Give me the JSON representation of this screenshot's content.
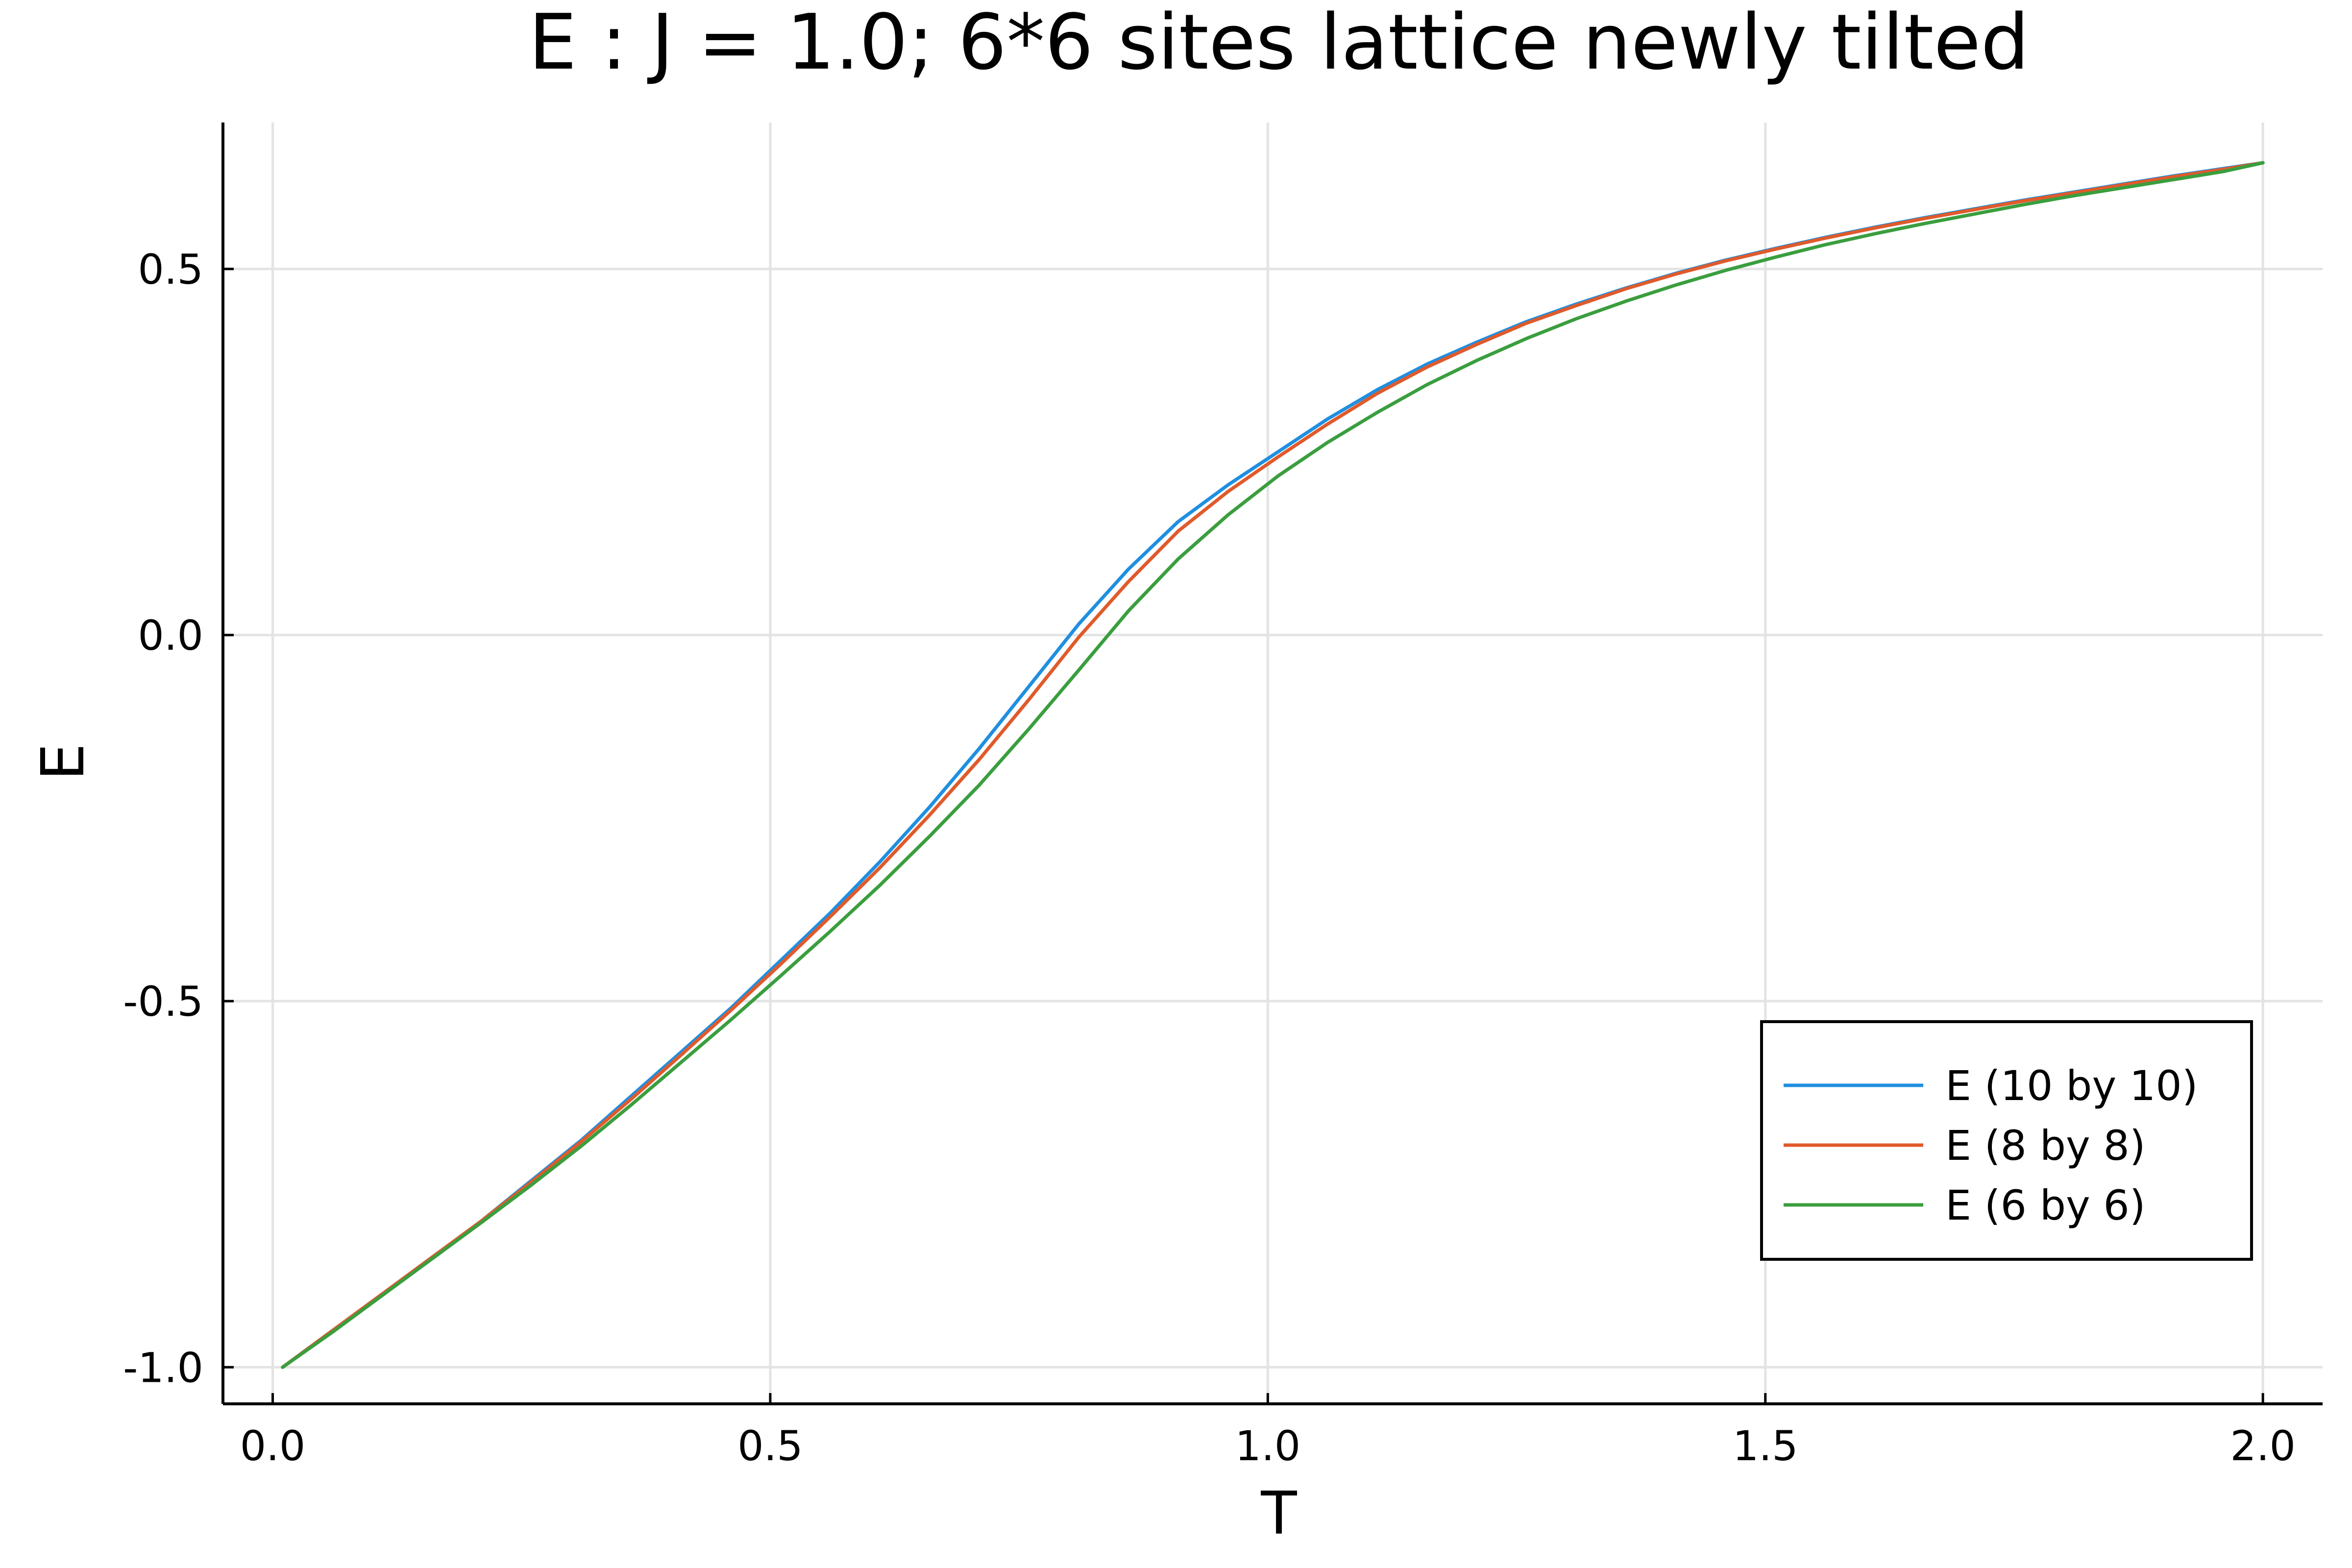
{
  "chart_data": {
    "type": "line",
    "title": "E : J = 1.0; 6*6 sites lattice newly tilted",
    "xlabel": "T",
    "ylabel": "E",
    "xlim": [
      -0.05,
      2.06
    ],
    "ylim": [
      -1.05,
      0.7
    ],
    "xticks": [
      0.0,
      0.5,
      1.0,
      1.5,
      2.0
    ],
    "xtick_labels": [
      "0.0",
      "0.5",
      "1.0",
      "1.5",
      "2.0"
    ],
    "yticks": [
      -1.0,
      -0.5,
      0.0,
      0.5
    ],
    "ytick_labels": [
      "-1.0",
      "-0.5",
      "0.0",
      "0.5"
    ],
    "grid": true,
    "legend_position": "bottom-right",
    "x": [
      0.01,
      0.06,
      0.11,
      0.16,
      0.21,
      0.26,
      0.31,
      0.36,
      0.41,
      0.46,
      0.51,
      0.56,
      0.61,
      0.66,
      0.71,
      0.76,
      0.81,
      0.86,
      0.91,
      0.96,
      1.01,
      1.06,
      1.11,
      1.16,
      1.21,
      1.26,
      1.31,
      1.36,
      1.41,
      1.46,
      1.51,
      1.56,
      1.61,
      1.66,
      1.71,
      1.76,
      1.81,
      1.86,
      1.91,
      1.96,
      2.0
    ],
    "series": [
      {
        "name": "E (10 by 10)",
        "color": "#1f8fe0",
        "values": [
          -1.0,
          -0.95,
          -0.9,
          -0.85,
          -0.8,
          -0.745,
          -0.69,
          -0.63,
          -0.57,
          -0.51,
          -0.445,
          -0.38,
          -0.31,
          -0.235,
          -0.155,
          -0.07,
          0.015,
          0.09,
          0.155,
          0.205,
          0.25,
          0.295,
          0.335,
          0.37,
          0.4,
          0.428,
          0.452,
          0.474,
          0.494,
          0.512,
          0.528,
          0.543,
          0.557,
          0.57,
          0.582,
          0.594,
          0.605,
          0.616,
          0.627,
          0.637,
          0.645
        ]
      },
      {
        "name": "E (8 by 8)",
        "color": "#e05a2b",
        "values": [
          -1.0,
          -0.95,
          -0.9,
          -0.85,
          -0.8,
          -0.747,
          -0.692,
          -0.634,
          -0.574,
          -0.513,
          -0.45,
          -0.385,
          -0.318,
          -0.246,
          -0.17,
          -0.088,
          -0.003,
          0.073,
          0.142,
          0.196,
          0.243,
          0.288,
          0.33,
          0.366,
          0.397,
          0.426,
          0.45,
          0.473,
          0.493,
          0.511,
          0.527,
          0.542,
          0.556,
          0.569,
          0.581,
          0.593,
          0.604,
          0.615,
          0.626,
          0.636,
          0.645
        ]
      },
      {
        "name": "E (6 by 6)",
        "color": "#3a9e3e",
        "values": [
          -1.0,
          -0.952,
          -0.902,
          -0.852,
          -0.802,
          -0.751,
          -0.698,
          -0.642,
          -0.584,
          -0.526,
          -0.466,
          -0.405,
          -0.342,
          -0.275,
          -0.205,
          -0.128,
          -0.048,
          0.033,
          0.104,
          0.164,
          0.217,
          0.263,
          0.304,
          0.342,
          0.375,
          0.405,
          0.432,
          0.456,
          0.478,
          0.498,
          0.516,
          0.533,
          0.548,
          0.562,
          0.575,
          0.588,
          0.6,
          0.611,
          0.622,
          0.633,
          0.645
        ]
      }
    ]
  }
}
